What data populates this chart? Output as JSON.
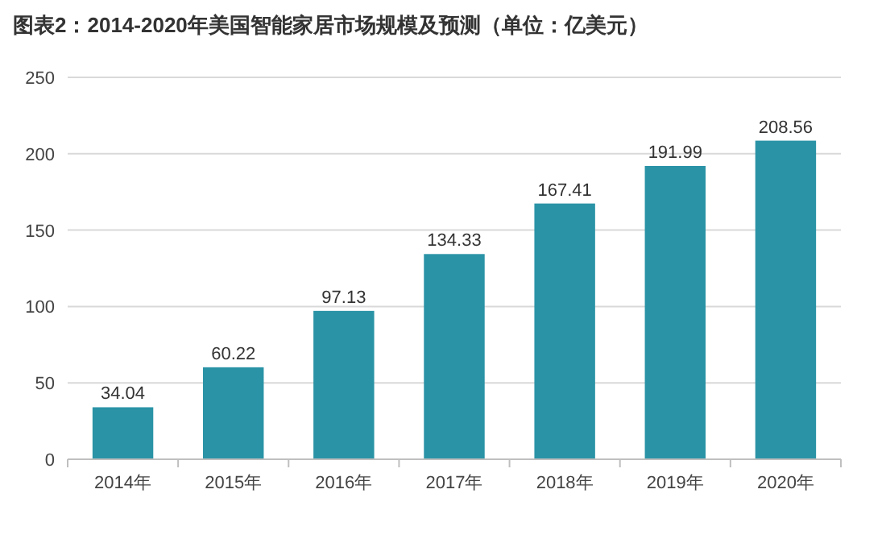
{
  "chart_data": {
    "type": "bar",
    "title": "图表2：2014-2020年美国智能家居市场规模及预测（单位：亿美元）",
    "categories": [
      "2014年",
      "2015年",
      "2016年",
      "2017年",
      "2018年",
      "2019年",
      "2020年"
    ],
    "values": [
      34.04,
      60.22,
      97.13,
      134.33,
      167.41,
      191.99,
      208.56
    ],
    "color": "#2a93a6",
    "ylim": [
      0,
      250
    ],
    "yticks": [
      0,
      50,
      100,
      150,
      200,
      250
    ],
    "grid": "y",
    "data_labels": true
  }
}
